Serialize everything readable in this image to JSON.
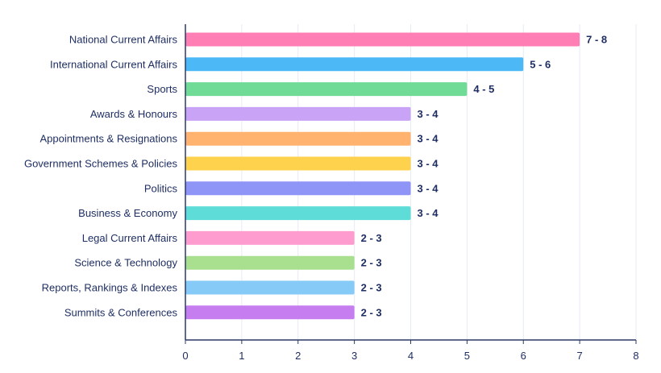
{
  "chart_data": {
    "type": "bar",
    "orientation": "horizontal",
    "categories": [
      "National Current Affairs",
      "International Current Affairs",
      "Sports",
      "Awards & Honours",
      "Appointments & Resignations",
      "Government Schemes & Policies",
      "Politics",
      "Business & Economy",
      "Legal Current Affairs",
      "Science & Technology",
      "Reports, Rankings & Indexes",
      "Summits & Conferences"
    ],
    "values": [
      7,
      6,
      5,
      4,
      4,
      4,
      4,
      4,
      3,
      3,
      3,
      3
    ],
    "value_labels": [
      "7 - 8",
      "5 - 6",
      "4 - 5",
      "3 - 4",
      "3 - 4",
      "3 - 4",
      "3 - 4",
      "3 - 4",
      "2 - 3",
      "2 - 3",
      "2 - 3",
      "2 - 3"
    ],
    "colors": [
      "#ff7eb3",
      "#4cb8f5",
      "#6fdb96",
      "#c9a3f5",
      "#ffb36e",
      "#ffd24d",
      "#8f95f7",
      "#5ddcd8",
      "#ff9ccf",
      "#a8e08f",
      "#86caf7",
      "#c57df0"
    ],
    "xlim": [
      0,
      8
    ],
    "xticks": [
      0,
      1,
      2,
      3,
      4,
      5,
      6,
      7,
      8
    ],
    "grid": "vertical",
    "title": "",
    "xlabel": "",
    "ylabel": ""
  }
}
